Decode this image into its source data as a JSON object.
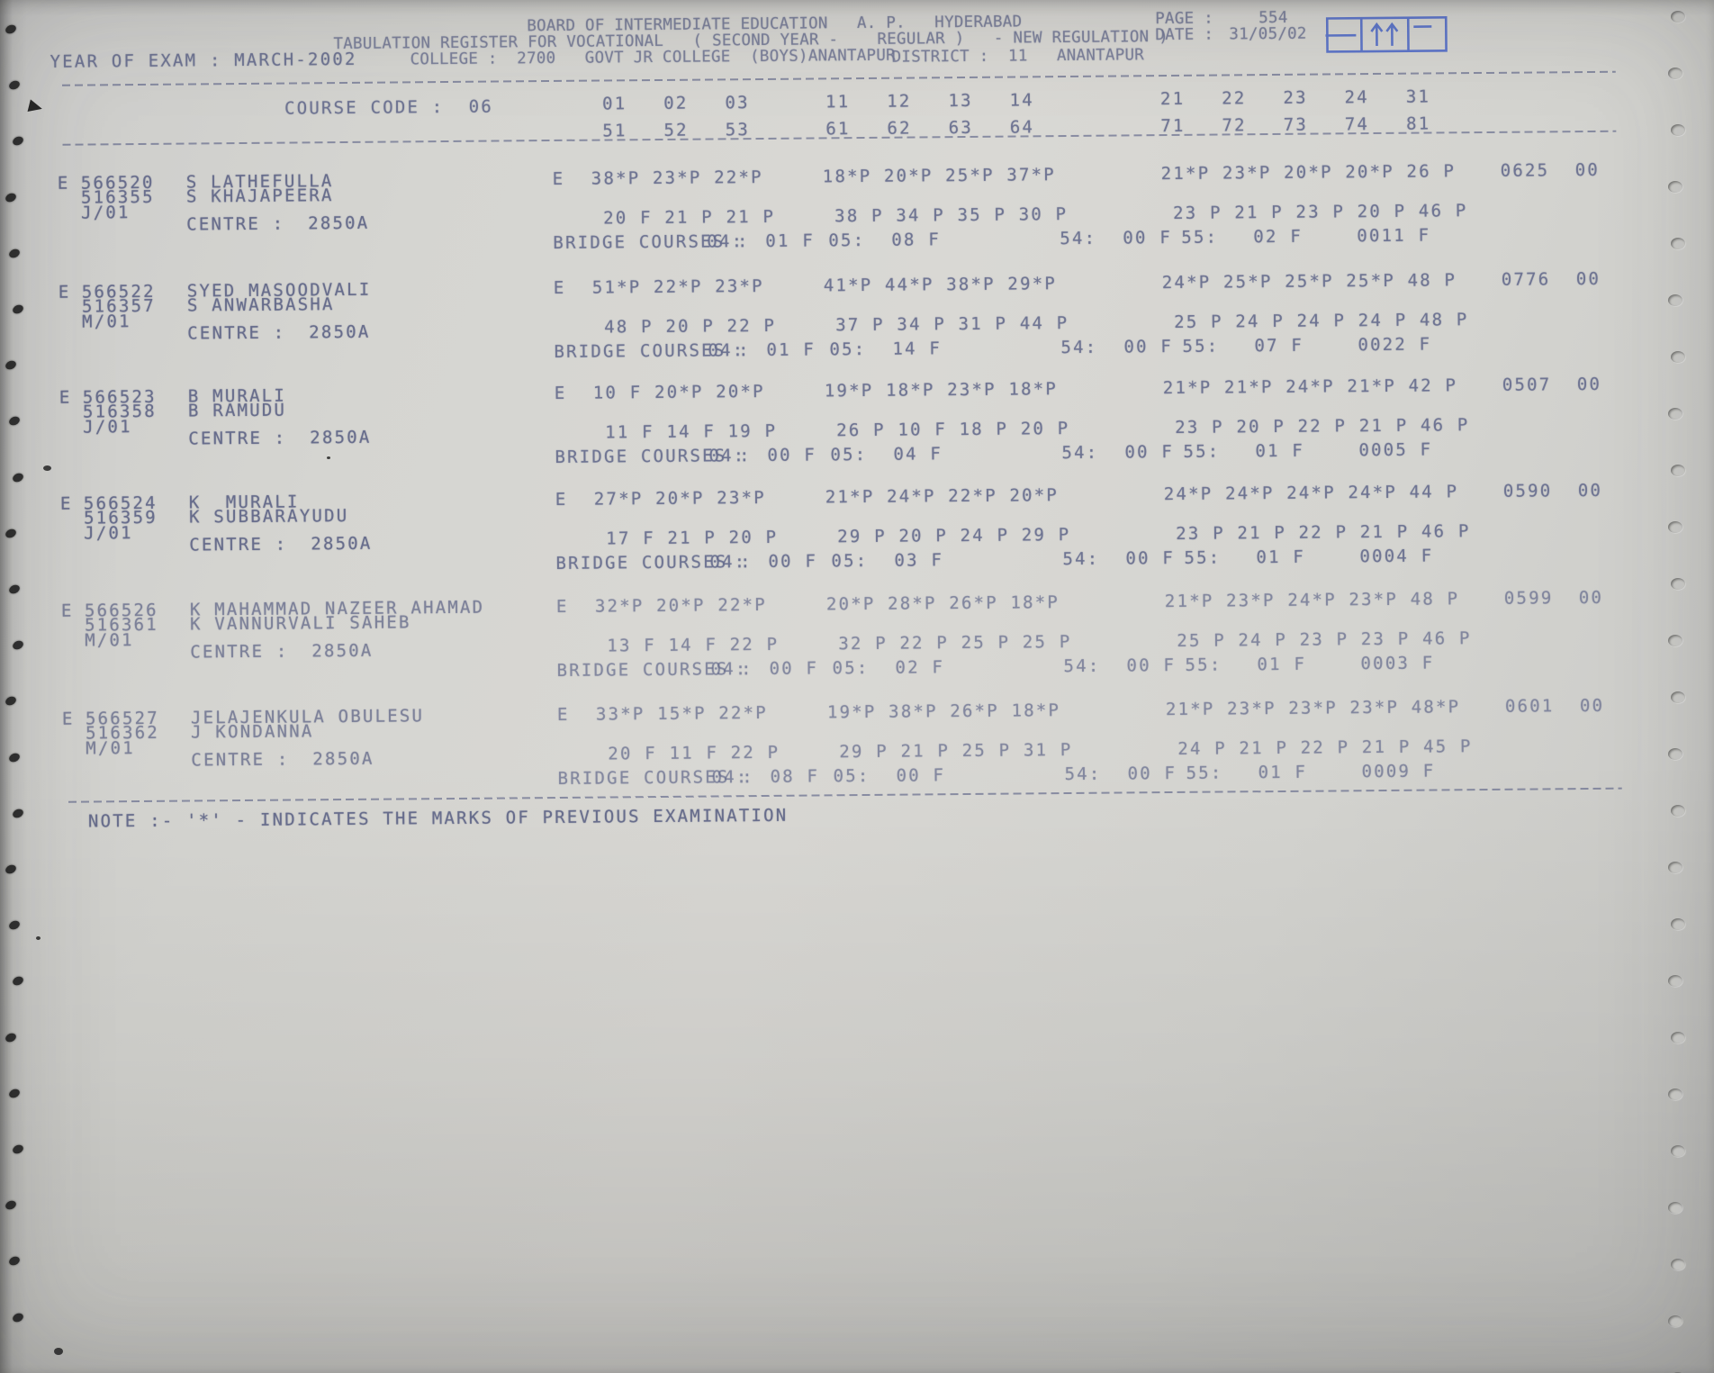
{
  "document": {
    "board_line": "BOARD OF INTERMEDIATE EDUCATION   A. P.   HYDERABAD",
    "register_line": "TABULATION REGISTER FOR VOCATIONAL   ( SECOND YEAR -    REGULAR )   - NEW REGULATION )",
    "year_line": "YEAR OF EXAM : MARCH-2002",
    "college_line": "COLLEGE :  2700   GOVT JR COLLEGE  (BOYS)ANANTAPUR",
    "district_line": "DISTRICT :  11   ANANTAPUR",
    "page_label": "PAGE :",
    "page_value": "554",
    "date_label": "DATE :",
    "date_value": "31/05/02",
    "course_code_line": "COURSE CODE :  06",
    "note_line": "NOTE :- '*' - INDICATES THE MARKS OF PREVIOUS EXAMINATION"
  },
  "labels": {
    "centre": "CENTRE :",
    "bridge": "BRIDGE COURSES :",
    "b04": "04:",
    "b05": "05:",
    "b54": "54:",
    "b55": "55:"
  },
  "course_codes": {
    "row1": [
      "01   02   03",
      "11   12   13   14",
      "21   22   23   24   31"
    ],
    "row2": [
      "51   52   53",
      "61   62   63   64",
      "71   72   73   74   81"
    ]
  },
  "records": [
    {
      "flag": "E",
      "reg_no": "566520",
      "name": "S LATHEFULLA",
      "reg_no2": "516355",
      "name2": "S KHAJAPEERA",
      "medium": "J/01",
      "centre": "2850A",
      "grade": "E",
      "marks1": [
        "38*P 23*P 22*P",
        "18*P 20*P 25*P 37*P",
        "21*P 23*P 20*P 20*P 26 P"
      ],
      "total": "0625",
      "result_flags": "00",
      "marks2": [
        "20 F 21 P 21 P",
        "38 P 34 P 35 P 30 P",
        "23 P 21 P 23 P 20 P 46 P"
      ],
      "bridge": {
        "c04": "01 F",
        "c05": "08 F",
        "c54": "00 F",
        "c55": "02 F",
        "total": "0011 F"
      }
    },
    {
      "flag": "E",
      "reg_no": "566522",
      "name": "SYED MASOODVALI",
      "reg_no2": "516357",
      "name2": "S ANWARBASHA",
      "medium": "M/01",
      "centre": "2850A",
      "grade": "E",
      "marks1": [
        "51*P 22*P 23*P",
        "41*P 44*P 38*P 29*P",
        "24*P 25*P 25*P 25*P 48 P"
      ],
      "total": "0776",
      "result_flags": "00",
      "marks2": [
        "48 P 20 P 22 P",
        "37 P 34 P 31 P 44 P",
        "25 P 24 P 24 P 24 P 48 P"
      ],
      "bridge": {
        "c04": "01 F",
        "c05": "14 F",
        "c54": "00 F",
        "c55": "07 F",
        "total": "0022 F"
      }
    },
    {
      "flag": "E",
      "reg_no": "566523",
      "name": "B MURALI",
      "reg_no2": "516358",
      "name2": "B RAMUDU",
      "medium": "J/01",
      "centre": "2850A",
      "grade": "E",
      "marks1": [
        "10 F 20*P 20*P",
        "19*P 18*P 23*P 18*P",
        "21*P 21*P 24*P 21*P 42 P"
      ],
      "total": "0507",
      "result_flags": "00",
      "marks2": [
        "11 F 14 F 19 P",
        "26 P 10 F 18 P 20 P",
        "23 P 20 P 22 P 21 P 46 P"
      ],
      "bridge": {
        "c04": "00 F",
        "c05": "04 F",
        "c54": "00 F",
        "c55": "01 F",
        "total": "0005 F"
      }
    },
    {
      "flag": "E",
      "reg_no": "566524",
      "name": "K  MURALI",
      "reg_no2": "516359",
      "name2": "K SUBBARAYUDU",
      "medium": "J/01",
      "centre": "2850A",
      "grade": "E",
      "marks1": [
        "27*P 20*P 23*P",
        "21*P 24*P 22*P 20*P",
        "24*P 24*P 24*P 24*P 44 P"
      ],
      "total": "0590",
      "result_flags": "00",
      "marks2": [
        "17 F 21 P 20 P",
        "29 P 20 P 24 P 29 P",
        "23 P 21 P 22 P 21 P 46 P"
      ],
      "bridge": {
        "c04": "00 F",
        "c05": "03 F",
        "c54": "00 F",
        "c55": "01 F",
        "total": "0004 F"
      }
    },
    {
      "flag": "E",
      "reg_no": "566526",
      "name": "K MAHAMMAD NAZEER AHAMAD",
      "reg_no2": "516361",
      "name2": "K VANNURVALI SAHEB",
      "medium": "M/01",
      "centre": "2850A",
      "grade": "E",
      "marks1": [
        "32*P 20*P 22*P",
        "20*P 28*P 26*P 18*P",
        "21*P 23*P 24*P 23*P 48 P"
      ],
      "total": "0599",
      "result_flags": "00",
      "marks2": [
        "13 F 14 F 22 P",
        "32 P 22 P 25 P 25 P",
        "25 P 24 P 23 P 23 P 46 P"
      ],
      "bridge": {
        "c04": "00 F",
        "c05": "02 F",
        "c54": "00 F",
        "c55": "01 F",
        "total": "0003 F"
      }
    },
    {
      "flag": "E",
      "reg_no": "566527",
      "name": "JELAJENKULA OBULESU",
      "reg_no2": "516362",
      "name2": "J KONDANNA",
      "medium": "M/01",
      "centre": "2850A",
      "grade": "E",
      "marks1": [
        "33*P 15*P 22*P",
        "19*P 38*P 26*P 18*P",
        "21*P 23*P 23*P 23*P 48*P"
      ],
      "total": "0601",
      "result_flags": "00",
      "marks2": [
        "20 F 11 F 22 P",
        "29 P 21 P 25 P 31 P",
        "24 P 21 P 22 P 21 P 45 P"
      ],
      "bridge": {
        "c04": "08 F",
        "c05": "00 F",
        "c54": "00 F",
        "c55": "01 F",
        "total": "0009 F"
      }
    }
  ]
}
